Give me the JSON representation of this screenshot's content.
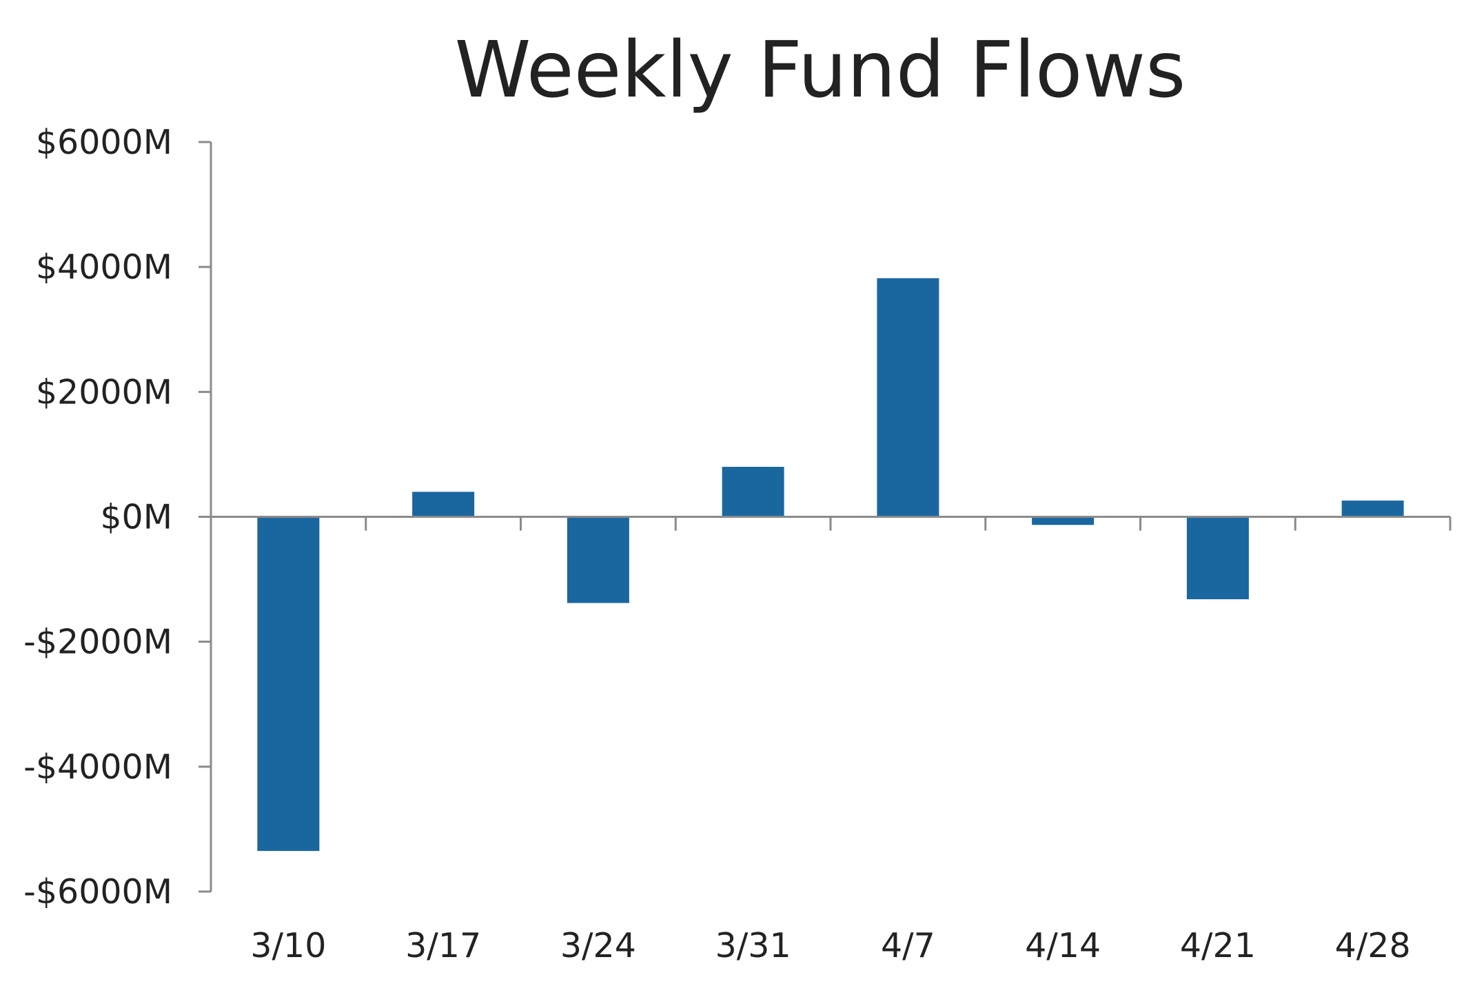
{
  "chart_data": {
    "type": "bar",
    "title": "Weekly Fund Flows",
    "xlabel": "",
    "ylabel": "",
    "categories": [
      "3/10",
      "3/17",
      "3/24",
      "3/31",
      "4/7",
      "4/14",
      "4/21",
      "4/28"
    ],
    "values": [
      -5350,
      400,
      -1380,
      800,
      3820,
      -130,
      -1320,
      260
    ],
    "unit": "$M",
    "ylim": [
      -6000,
      6000
    ],
    "yticks": [
      6000,
      4000,
      2000,
      0,
      -2000,
      -4000,
      -6000
    ],
    "ytick_labels": [
      "$6000M",
      "$4000M",
      "$2000M",
      "$0M",
      "-$2000M",
      "-$4000M",
      "-$6000M"
    ],
    "grid": false,
    "legend": "none",
    "bar_color": "#1a67a0",
    "axis_color": "#8a8a8a",
    "text_color": "#222222"
  }
}
